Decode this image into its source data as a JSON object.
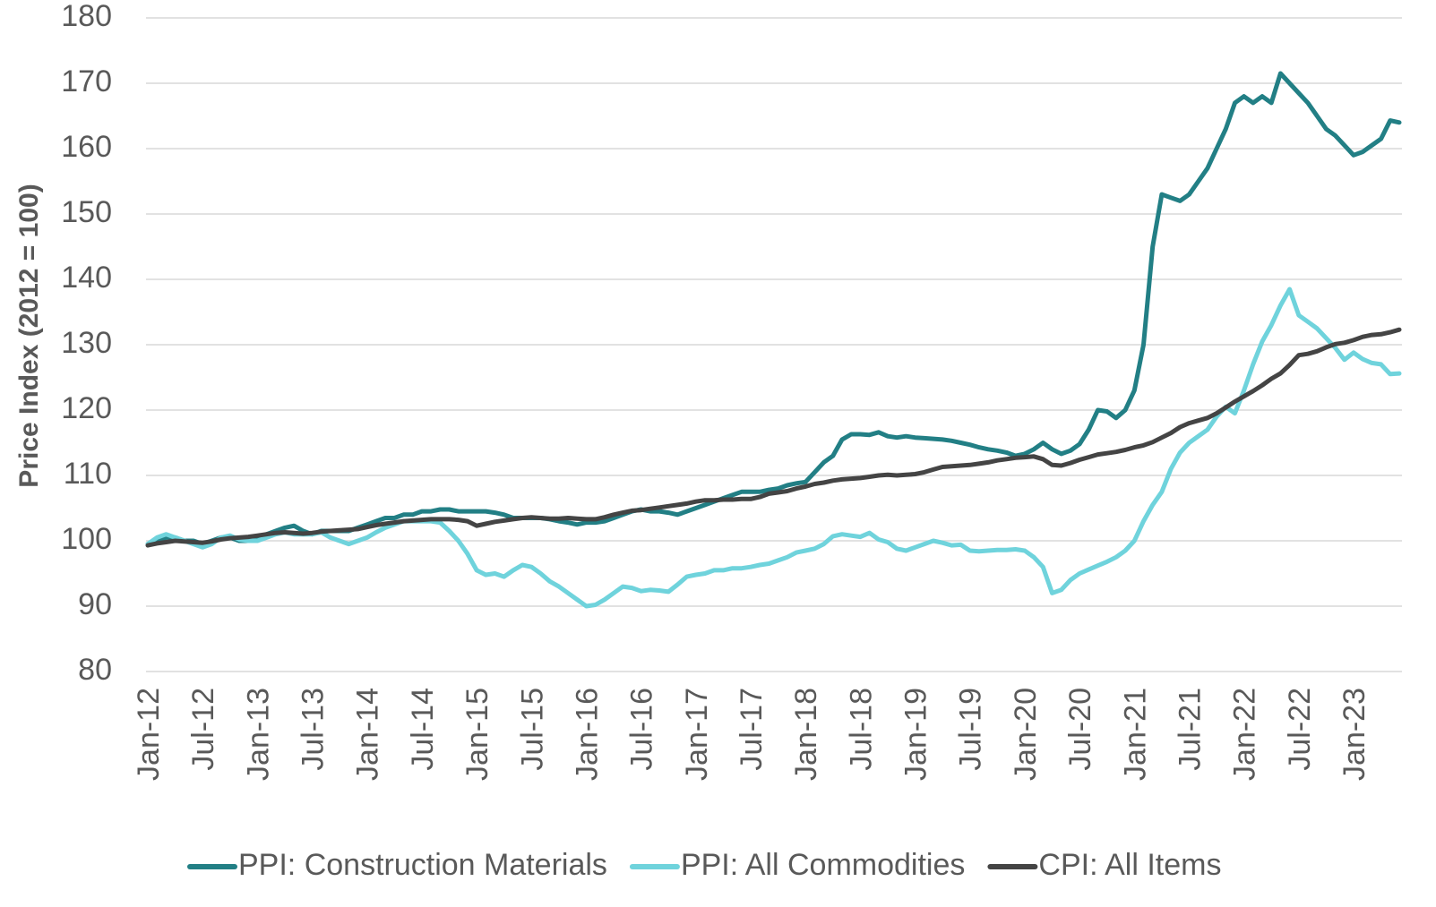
{
  "chart_data": {
    "type": "line",
    "y_label": "Price Index (2012 = 100)",
    "categories": [
      "Jan-12",
      null,
      null,
      null,
      null,
      null,
      "Jul-12",
      null,
      null,
      null,
      null,
      null,
      "Jan-13",
      null,
      null,
      null,
      null,
      null,
      "Jul-13",
      null,
      null,
      null,
      null,
      null,
      "Jan-14",
      null,
      null,
      null,
      null,
      null,
      "Jul-14",
      null,
      null,
      null,
      null,
      null,
      "Jan-15",
      null,
      null,
      null,
      null,
      null,
      "Jul-15",
      null,
      null,
      null,
      null,
      null,
      "Jan-16",
      null,
      null,
      null,
      null,
      null,
      "Jul-16",
      null,
      null,
      null,
      null,
      null,
      "Jan-17",
      null,
      null,
      null,
      null,
      null,
      "Jul-17",
      null,
      null,
      null,
      null,
      null,
      "Jan-18",
      null,
      null,
      null,
      null,
      null,
      "Jul-18",
      null,
      null,
      null,
      null,
      null,
      "Jan-19",
      null,
      null,
      null,
      null,
      null,
      "Jul-19",
      null,
      null,
      null,
      null,
      null,
      "Jan-20",
      null,
      null,
      null,
      null,
      null,
      "Jul-20",
      null,
      null,
      null,
      null,
      null,
      "Jan-21",
      null,
      null,
      null,
      null,
      null,
      "Jul-21",
      null,
      null,
      null,
      null,
      null,
      "Jan-22",
      null,
      null,
      null,
      null,
      null,
      "Jul-22",
      null,
      null,
      null,
      null,
      null,
      "Jan-23",
      null,
      null,
      null,
      null,
      null
    ],
    "series": [
      {
        "name": "PPI: Construction Materials",
        "color": "#227f85",
        "values": [
          99.5,
          100,
          100.5,
          100.5,
          100,
          100,
          99.5,
          100,
          100.5,
          100.5,
          100,
          100,
          100.5,
          101,
          101.5,
          102,
          102.3,
          101.5,
          101,
          101.5,
          101.5,
          101.5,
          101.5,
          102,
          102.5,
          103,
          103.5,
          103.5,
          104,
          104,
          104.5,
          104.5,
          104.8,
          104.8,
          104.5,
          104.5,
          104.5,
          104.5,
          104.3,
          104,
          103.5,
          103.5,
          103.5,
          103.5,
          103.3,
          103,
          102.8,
          102.5,
          102.8,
          102.8,
          103,
          103.5,
          104,
          104.5,
          104.8,
          104.5,
          104.5,
          104.3,
          104,
          104.5,
          105,
          105.5,
          106,
          106.5,
          107,
          107.5,
          107.5,
          107.5,
          107.8,
          108,
          108.5,
          108.8,
          109,
          110.5,
          112,
          113,
          115.5,
          116.3,
          116.3,
          116.2,
          116.6,
          116,
          115.8,
          116,
          115.8,
          115.7,
          115.6,
          115.5,
          115.3,
          115,
          114.7,
          114.3,
          114,
          113.8,
          113.5,
          113,
          113.3,
          114,
          115,
          114,
          113.3,
          113.8,
          114.8,
          117,
          120,
          119.8,
          118.8,
          120,
          123,
          130,
          145,
          153,
          152.5,
          152,
          153,
          155,
          157,
          160,
          163,
          167,
          168,
          167,
          168,
          167,
          171.5,
          170,
          168.5,
          167,
          165,
          163,
          162,
          160.5,
          159,
          159.5,
          160.5,
          161.5,
          164.3,
          164
        ]
      },
      {
        "name": "PPI: All Commodities",
        "color": "#6fd3dc",
        "values": [
          99.5,
          100.5,
          101,
          100.5,
          100,
          99.5,
          99,
          99.5,
          100.5,
          100.8,
          100.2,
          100,
          100,
          100.5,
          101,
          101.3,
          101,
          101,
          101,
          101.3,
          100.5,
          100,
          99.5,
          100,
          100.5,
          101.3,
          102,
          102.5,
          103,
          103,
          103,
          103,
          102.8,
          101.5,
          100,
          98,
          95.5,
          94.8,
          95,
          94.5,
          95.5,
          96.3,
          96,
          95,
          93.8,
          93,
          92,
          91,
          90,
          90.2,
          91,
          92,
          93,
          92.8,
          92.3,
          92.5,
          92.4,
          92.2,
          93.3,
          94.5,
          94.8,
          95,
          95.5,
          95.5,
          95.8,
          95.8,
          96,
          96.3,
          96.5,
          97,
          97.5,
          98.2,
          98.5,
          98.8,
          99.5,
          100.7,
          101,
          100.8,
          100.6,
          101.2,
          100.2,
          99.8,
          98.8,
          98.5,
          99,
          99.5,
          100,
          99.7,
          99.3,
          99.4,
          98.5,
          98.4,
          98.5,
          98.6,
          98.6,
          98.7,
          98.5,
          97.5,
          96,
          92,
          92.5,
          94,
          95,
          95.6,
          96.2,
          96.8,
          97.5,
          98.5,
          100,
          103,
          105.5,
          107.5,
          111,
          113.5,
          115,
          116,
          117,
          119,
          120.5,
          119.5,
          123,
          127,
          130.5,
          133,
          136,
          138.5,
          134.5,
          133.5,
          132.5,
          131,
          129.5,
          127.7,
          128.8,
          127.8,
          127.2,
          127,
          125.5,
          125.6
        ]
      },
      {
        "name": "CPI: All Items",
        "color": "#444444",
        "values": [
          99.3,
          99.6,
          99.8,
          100,
          99.9,
          99.8,
          99.7,
          99.9,
          100.2,
          100.4,
          100.5,
          100.6,
          100.8,
          101,
          101.2,
          101.3,
          101.2,
          101.1,
          101.2,
          101.4,
          101.5,
          101.6,
          101.7,
          101.8,
          102.1,
          102.4,
          102.6,
          102.8,
          103,
          103.1,
          103.2,
          103.3,
          103.3,
          103.3,
          103.2,
          103,
          102.3,
          102.6,
          102.9,
          103.1,
          103.3,
          103.5,
          103.6,
          103.5,
          103.4,
          103.4,
          103.5,
          103.4,
          103.3,
          103.3,
          103.6,
          104,
          104.3,
          104.6,
          104.7,
          104.9,
          105.1,
          105.3,
          105.5,
          105.7,
          106,
          106.2,
          106.2,
          106.3,
          106.3,
          106.4,
          106.4,
          106.7,
          107.2,
          107.4,
          107.6,
          108,
          108.3,
          108.7,
          108.9,
          109.2,
          109.4,
          109.5,
          109.6,
          109.8,
          110,
          110.1,
          110,
          110.1,
          110.2,
          110.5,
          110.9,
          111.3,
          111.4,
          111.5,
          111.6,
          111.8,
          112,
          112.3,
          112.5,
          112.7,
          112.8,
          112.9,
          112.5,
          111.6,
          111.5,
          111.9,
          112.4,
          112.8,
          113.2,
          113.4,
          113.6,
          113.9,
          114.3,
          114.6,
          115.1,
          115.8,
          116.5,
          117.4,
          118,
          118.4,
          118.8,
          119.5,
          120.4,
          121.3,
          122.1,
          122.9,
          123.8,
          124.8,
          125.6,
          126.9,
          128.4,
          128.6,
          129,
          129.6,
          130.1,
          130.3,
          130.7,
          131.2,
          131.5,
          131.6,
          131.9,
          132.3
        ]
      }
    ],
    "ylim": [
      80,
      180
    ],
    "yticks": [
      80,
      90,
      100,
      110,
      120,
      130,
      140,
      150,
      160,
      170,
      180
    ],
    "grid": true,
    "legend": "bottom"
  }
}
